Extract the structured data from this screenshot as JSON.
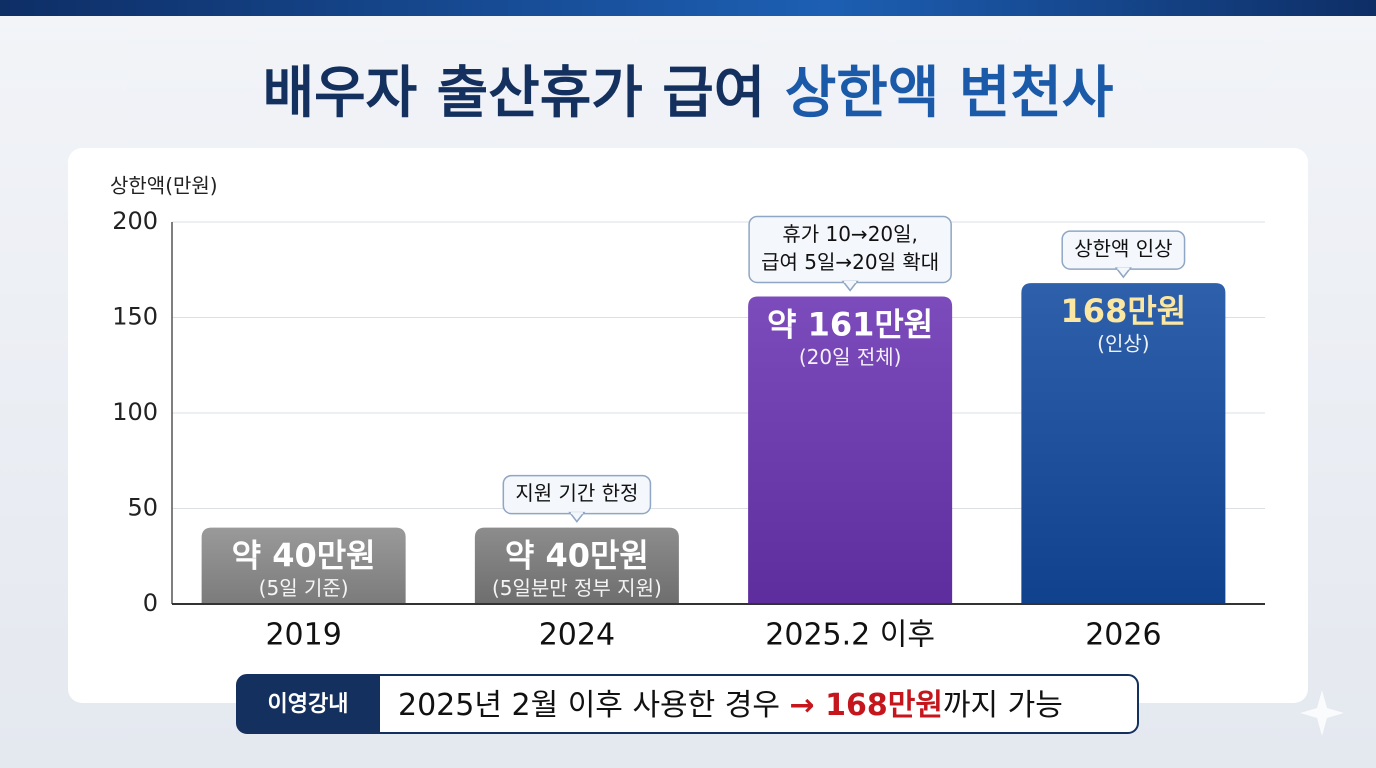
{
  "chart_data": {
    "type": "bar",
    "title_parts": [
      "배우자 출산휴가 급여",
      "상한액 변천사"
    ],
    "title_colors": [
      "#14305e",
      "#1a5aa8"
    ],
    "y_label": "상한액(만원)",
    "categories": [
      "2019",
      "2024",
      "2025.2 이후",
      "2026"
    ],
    "values": [
      40,
      40,
      161,
      168
    ],
    "value_labels": [
      "약 40만원",
      "약 40만원",
      "약 161만원",
      "168만원"
    ],
    "sublabels": [
      "(5일 기준)",
      "(5일분만 정부 지원)",
      "(20일 전체)",
      "(인상)"
    ],
    "colors": [
      "#8c8c8c",
      "#7d7d7d",
      "#6a33b3",
      "#124aa0"
    ],
    "value_label_colors": [
      "#ffffff",
      "#ffffff",
      "#ffffff",
      "#fbe7a1"
    ],
    "callouts": [
      null,
      [
        "지원 기간 한정"
      ],
      [
        "휴가 10→20일,",
        "급여 5일→20일 확대"
      ],
      [
        "상한액 인상"
      ]
    ],
    "ylim": [
      0,
      200
    ],
    "yticks": [
      0,
      50,
      100,
      150,
      200
    ],
    "grid": true
  },
  "footer": {
    "tag": "이영강내",
    "text": "2025년 2월 이후 사용한 경우 ",
    "highlight": "→ 168만원",
    "tail": "까지 가능",
    "highlight_color": "#c4161c"
  }
}
